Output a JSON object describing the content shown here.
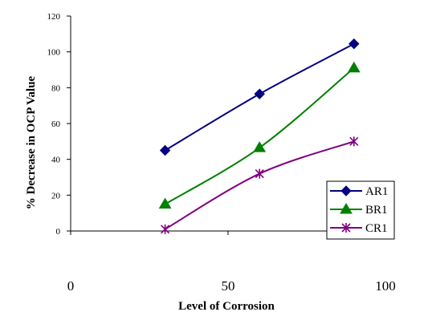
{
  "chart_data": {
    "type": "line",
    "title": "",
    "xlabel": "Level of Corrosion",
    "ylabel": "% Decrease in OCP Value",
    "xlim": [
      0,
      100
    ],
    "ylim": [
      0,
      120
    ],
    "xticks": [
      "0",
      "50",
      "100"
    ],
    "yticks": [
      "0",
      "20",
      "40",
      "60",
      "80",
      "100",
      "120"
    ],
    "grid": false,
    "legend_position": "bottom-right",
    "series": [
      {
        "name": "AR1",
        "color": "#000080",
        "marker": "diamond",
        "x": [
          30,
          60,
          90
        ],
        "y": [
          45,
          76.5,
          104.5
        ]
      },
      {
        "name": "BR1",
        "color": "#008000",
        "marker": "triangle",
        "x": [
          30,
          60,
          90
        ],
        "y": [
          15,
          46.5,
          91
        ]
      },
      {
        "name": "CR1",
        "color": "#800080",
        "marker": "star",
        "x": [
          30,
          60,
          90
        ],
        "y": [
          1,
          32,
          50
        ]
      }
    ]
  }
}
